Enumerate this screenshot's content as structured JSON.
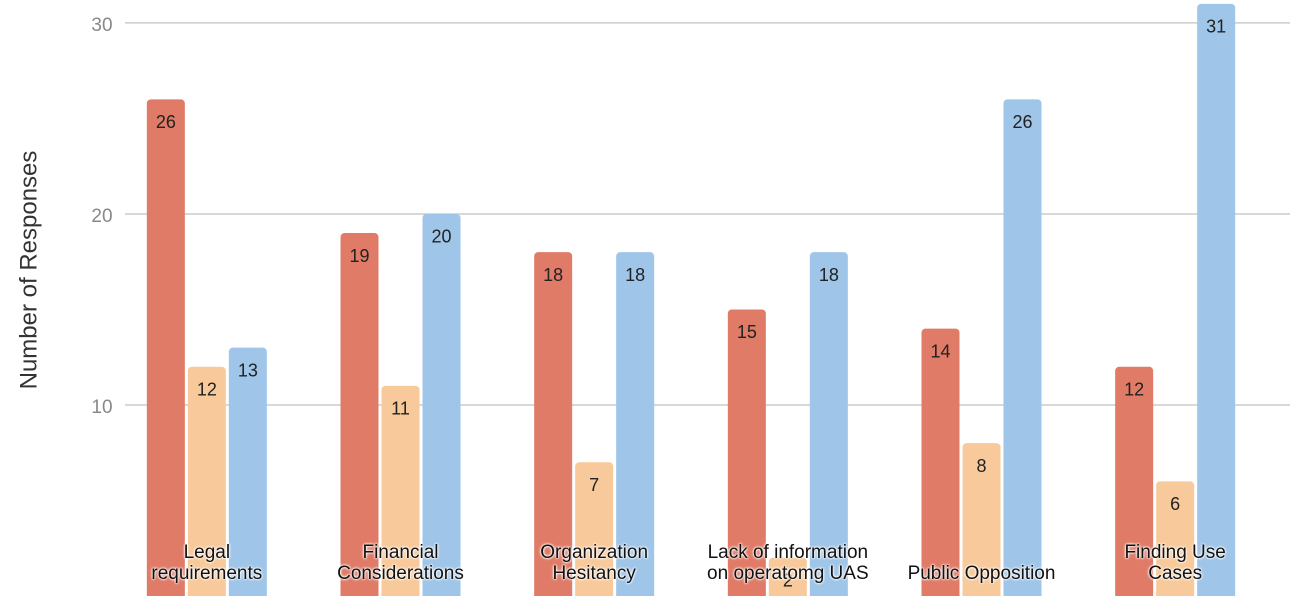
{
  "chart_data": {
    "type": "bar",
    "y_label": "Number of Responses",
    "categories": [
      "Legal requirements",
      "Financial Considerations",
      "Organization Hesitancy",
      "Lack of information on operatomg UAS",
      "Public Opposition",
      "Finding Use Cases"
    ],
    "series": [
      {
        "color": "#e07b67",
        "values": [
          26,
          19,
          18,
          15,
          14,
          12
        ]
      },
      {
        "color": "#f8c99a",
        "values": [
          12,
          11,
          7,
          2,
          8,
          6
        ]
      },
      {
        "color": "#9fc5e8",
        "values": [
          13,
          20,
          18,
          18,
          26,
          31
        ]
      }
    ],
    "ylim": [
      0,
      31.2
    ],
    "yticks": [
      10,
      20,
      30
    ],
    "grid": true
  }
}
